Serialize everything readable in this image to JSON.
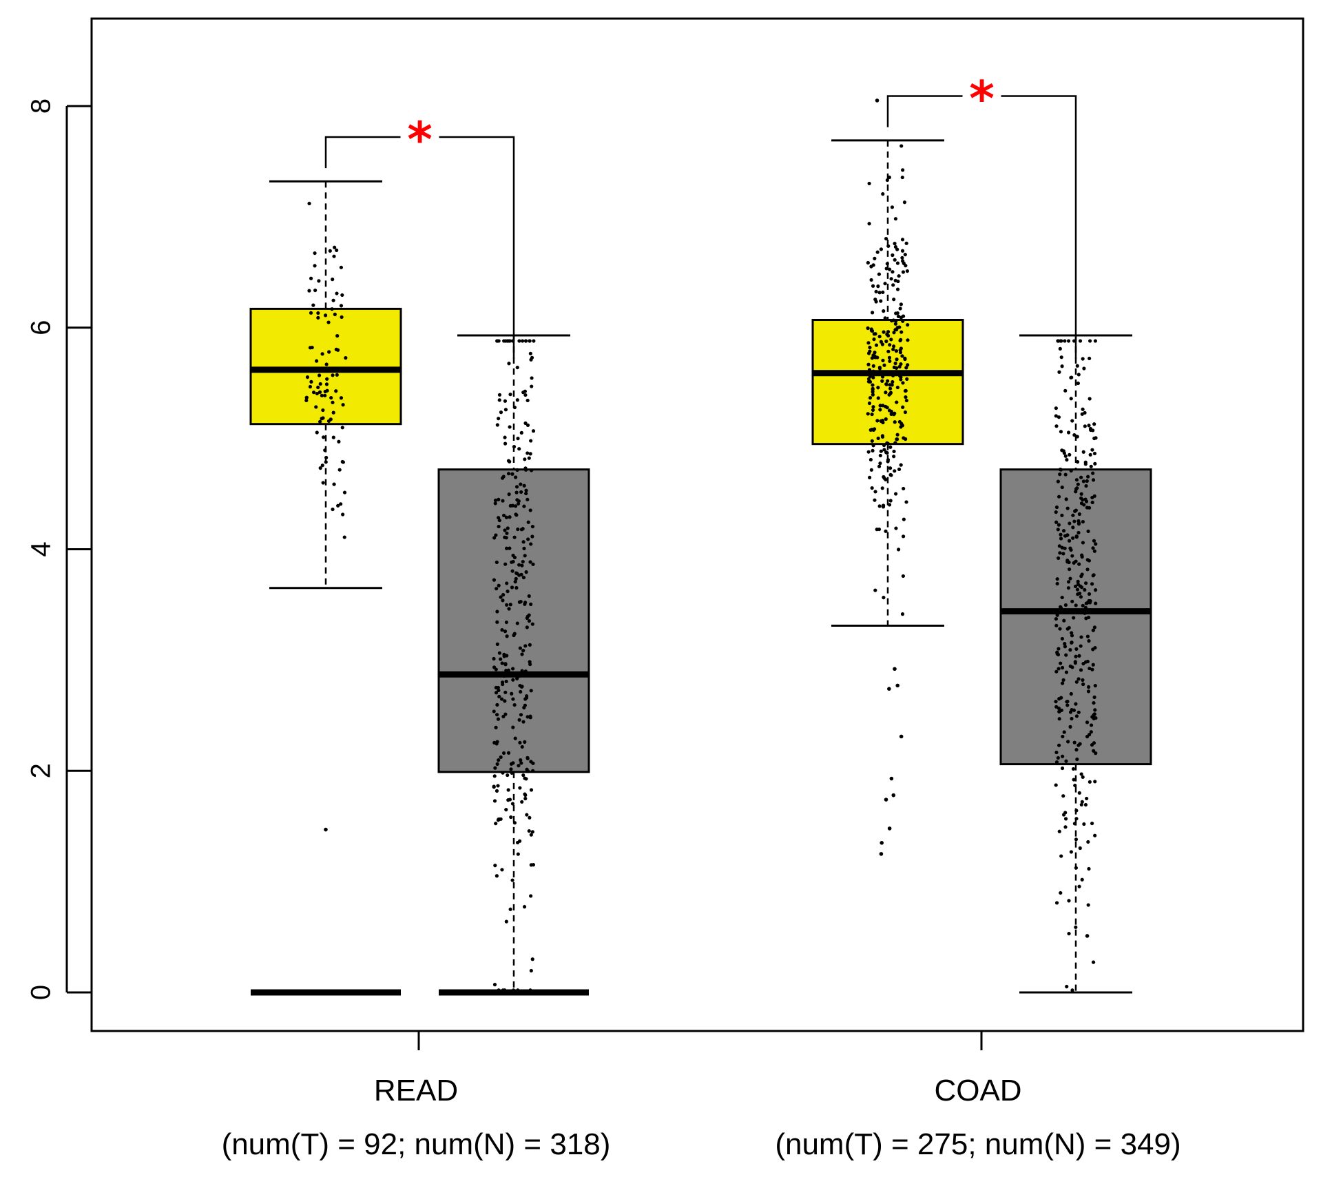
{
  "chart_data": {
    "type": "boxplot",
    "title": "",
    "xlabel": "",
    "ylabel": "",
    "ylim": [
      -0.7,
      8.7
    ],
    "y_ticks": [
      "0",
      "2",
      "4",
      "6",
      "8"
    ],
    "y_tick_values": [
      0,
      2,
      4,
      6,
      8
    ],
    "colors": {
      "tumor": "#f2ea00",
      "normal": "#808080",
      "significance": "#ff0000",
      "points": "#000000"
    },
    "groups": [
      {
        "name": "READ",
        "counts_label": "(num(T) = 92; num(N) = 318)",
        "num_tumor": 92,
        "num_normal": 318,
        "significance": "*",
        "tumor": {
          "whisker_low": 3.65,
          "q1": 5.13,
          "median": 5.62,
          "q3": 6.17,
          "whisker_high": 7.32,
          "extra_line": 0,
          "points_center": 5.6,
          "points_spread": 0.75,
          "outliers": [
            1.47
          ]
        },
        "normal": {
          "whisker_low": 0,
          "q1": 1.99,
          "median": 2.87,
          "q3": 4.72,
          "whisker_high": 5.93,
          "extra_line": 0,
          "points_center": 3.3,
          "points_spread": 1.4,
          "outliers": []
        }
      },
      {
        "name": "COAD",
        "counts_label": "(num(T) = 275; num(N) = 349)",
        "num_tumor": 275,
        "num_normal": 349,
        "significance": "*",
        "tumor": {
          "whisker_low": 3.31,
          "q1": 4.95,
          "median": 5.59,
          "q3": 6.07,
          "whisker_high": 7.69,
          "extra_line": null,
          "points_center": 5.55,
          "points_spread": 0.75,
          "outliers": [
            2.92,
            2.77,
            2.74,
            2.31,
            1.93,
            1.78,
            1.74,
            1.48,
            1.35,
            1.25,
            8.05
          ]
        },
        "normal": {
          "whisker_low": 0,
          "q1": 2.06,
          "median": 3.44,
          "q3": 4.72,
          "whisker_high": 5.93,
          "extra_line": null,
          "points_center": 3.4,
          "points_spread": 1.35,
          "outliers": [
            0.51
          ]
        }
      }
    ]
  }
}
